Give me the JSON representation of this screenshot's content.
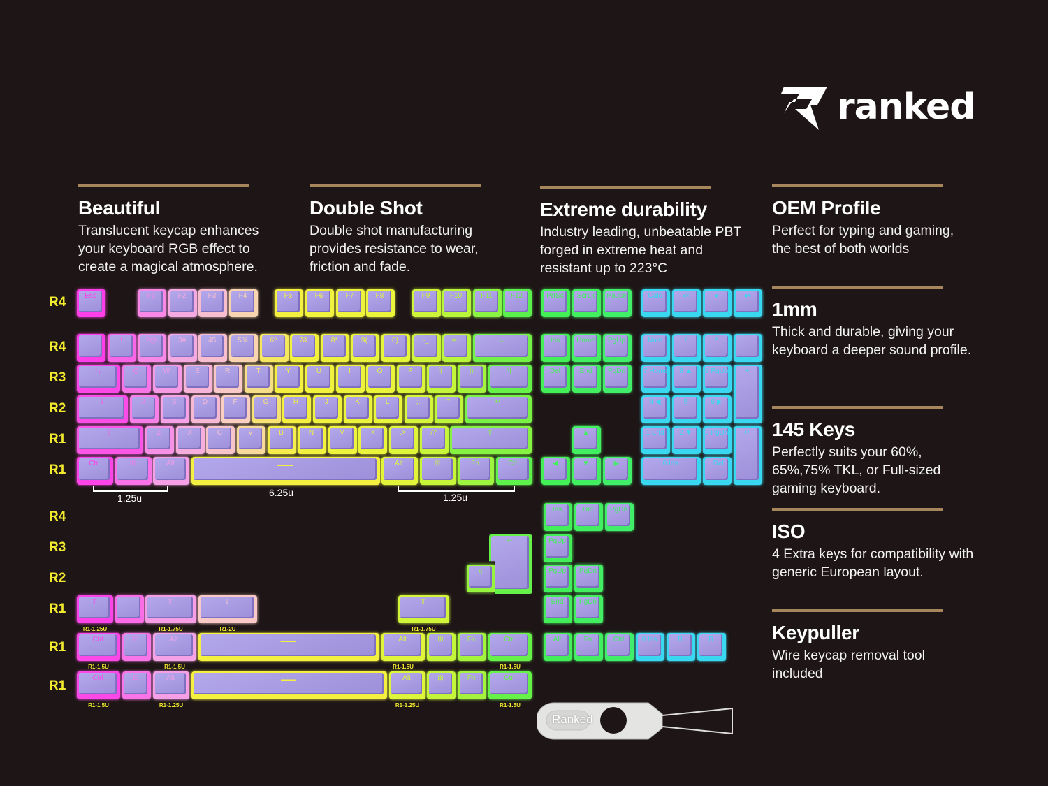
{
  "brand": {
    "name": "ranked"
  },
  "features": [
    {
      "title": "Beautiful",
      "text": "Translucent keycap enhances your keyboard RGB effect to create a magical atmosphere."
    },
    {
      "title": "Double Shot",
      "text": "Double shot manufacturing provides resistance to wear, friction and fade."
    },
    {
      "title": "Extreme durability",
      "text": "Industry leading, unbeatable PBT forged in extreme heat and resistant up to 223°C"
    },
    {
      "title": "OEM Profile",
      "text": "Perfect for typing and gaming, the best of both worlds"
    },
    {
      "title": "1mm",
      "text": "Thick and durable, giving your keyboard a deeper sound profile."
    },
    {
      "title": "145 Keys",
      "text": "Perfectly suits your 60%, 65%,75% TKL, or Full-sized gaming keyboard."
    },
    {
      "title": "ISO",
      "text": "4 Extra keys for compatibility with generic European layout."
    },
    {
      "title": "Keypuller",
      "text": "Wire keycap removal tool included"
    }
  ],
  "row_labels": [
    "R4",
    "R4",
    "R3",
    "R2",
    "R1",
    "R1",
    "R4",
    "R3",
    "R2",
    "R1",
    "R1",
    "R1"
  ],
  "dimensions": [
    "1.25u",
    "6.25u",
    "1.25u"
  ],
  "colors": {
    "magenta": "#ff2ee8",
    "pink": "#f5a3e6",
    "yellow": "#f4f040",
    "green": "#44f050",
    "cyan": "#3ad8f0",
    "keycap": "#a99be0",
    "rule": "#a8865c",
    "row_label": "#f2ea2e"
  },
  "keyboard": {
    "main": [
      [
        {
          "l": "Esc"
        },
        {
          "gap": 1
        },
        {
          "l": "F1"
        },
        {
          "l": "F2"
        },
        {
          "l": "F3"
        },
        {
          "l": "F4"
        },
        {
          "gap": 0.5
        },
        {
          "l": "F5"
        },
        {
          "l": "F6"
        },
        {
          "l": "F7"
        },
        {
          "l": "F8"
        },
        {
          "gap": 0.5
        },
        {
          "l": "F9"
        },
        {
          "l": "F10"
        },
        {
          "l": "F11"
        },
        {
          "l": "F12"
        }
      ],
      [
        {
          "l": "~"
        },
        {
          "l": "!"
        },
        {
          "l": "2@"
        },
        {
          "l": "3#"
        },
        {
          "l": "4$"
        },
        {
          "l": "5%"
        },
        {
          "l": "6^"
        },
        {
          "l": "7&"
        },
        {
          "l": "8*"
        },
        {
          "l": "9("
        },
        {
          "l": "0)"
        },
        {
          "l": "-_"
        },
        {
          "l": "=+"
        },
        {
          "l": "←",
          "u": 2
        }
      ],
      [
        {
          "l": "⇆",
          "u": 1.5
        },
        {
          "l": "Q"
        },
        {
          "l": "W"
        },
        {
          "l": "E"
        },
        {
          "l": "R"
        },
        {
          "l": "T"
        },
        {
          "l": "Y"
        },
        {
          "l": "U"
        },
        {
          "l": "I"
        },
        {
          "l": "O"
        },
        {
          "l": "P"
        },
        {
          "l": "[{"
        },
        {
          "l": "]}"
        },
        {
          "l": "\\|",
          "u": 1.5
        }
      ],
      [
        {
          "l": "⇪",
          "u": 1.75
        },
        {
          "l": "A"
        },
        {
          "l": "S"
        },
        {
          "l": "D"
        },
        {
          "l": "F"
        },
        {
          "l": "G"
        },
        {
          "l": "H"
        },
        {
          "l": "J"
        },
        {
          "l": "K"
        },
        {
          "l": "L"
        },
        {
          "l": ";:"
        },
        {
          "l": "'\""
        },
        {
          "l": "↵",
          "u": 2.25
        }
      ],
      [
        {
          "l": "⇧",
          "u": 2.25
        },
        {
          "l": "Z"
        },
        {
          "l": "X"
        },
        {
          "l": "C"
        },
        {
          "l": "V"
        },
        {
          "l": "B"
        },
        {
          "l": "N"
        },
        {
          "l": "M"
        },
        {
          "l": ",<"
        },
        {
          "l": ".>"
        },
        {
          "l": "/?"
        },
        {
          "l": "⇧",
          "u": 2.75
        }
      ],
      [
        {
          "l": "Ctrl",
          "u": 1.25
        },
        {
          "l": "⊞",
          "u": 1.25
        },
        {
          "l": "Alt",
          "u": 1.25
        },
        {
          "l": "—",
          "u": 6.25
        },
        {
          "l": "Alt",
          "u": 1.25
        },
        {
          "l": "⊞",
          "u": 1.25
        },
        {
          "l": "Fn",
          "u": 1.25
        },
        {
          "l": "Ctrl",
          "u": 1.25
        }
      ]
    ],
    "nav": [
      [
        {
          "l": "PrtSc"
        },
        {
          "l": "ScrLk"
        },
        {
          "l": "Pause"
        }
      ],
      [
        {
          "l": "Ins"
        },
        {
          "l": "Home"
        },
        {
          "l": "PgUp"
        }
      ],
      [
        {
          "l": "Del"
        },
        {
          "l": "End"
        },
        {
          "l": "PgDn"
        }
      ],
      [
        {
          "gap": 1
        },
        {
          "l": "▲"
        }
      ],
      [
        {
          "l": "◀"
        },
        {
          "l": "▼"
        },
        {
          "l": "▶"
        }
      ]
    ],
    "numpad": [
      [
        {
          "l": "Calc"
        },
        {
          "l": "◂×"
        },
        {
          "l": "◂-"
        },
        {
          "l": "◂+"
        }
      ],
      [
        {
          "l": "Num"
        },
        {
          "l": "/"
        },
        {
          "l": "*"
        },
        {
          "l": "−"
        }
      ],
      [
        {
          "l": "7 Home"
        },
        {
          "l": "8 ▲"
        },
        {
          "l": "9 PgUp"
        },
        {
          "l": "+",
          "h": 2
        }
      ],
      [
        {
          "l": "4 ◀"
        },
        {
          "l": "5"
        },
        {
          "l": "6 ▶"
        }
      ],
      [
        {
          "l": "1 End"
        },
        {
          "l": "2 ▼"
        },
        {
          "l": "3 PgDn"
        },
        {
          "l": "↵",
          "h": 2
        }
      ],
      [
        {
          "l": "0 Ins",
          "u": 2
        },
        {
          "l": ". Del"
        }
      ]
    ],
    "extra_nav": [
      [
        {
          "l": "Ins"
        },
        {
          "l": "Del"
        },
        {
          "l": "PgDn"
        }
      ],
      [
        {
          "l": "PgUp"
        }
      ],
      [
        {
          "l": "PgUp"
        },
        {
          "l": "PgDn"
        }
      ],
      [
        {
          "l": "End"
        },
        {
          "l": "PgDn"
        }
      ]
    ],
    "iso": [
      [
        {
          "l": "\\|"
        }
      ]
    ],
    "iso_enter": {
      "l": "↵"
    },
    "shift_extra": [
      [
        {
          "l": "⇧",
          "u": 1.25,
          "s": "R1-1.25U"
        },
        {
          "l": ""
        },
        {
          "l": "⇧",
          "u": 1.75,
          "s": "R1-1.75U"
        },
        {
          "l": "⇧",
          "u": 2,
          "s": "R1-2U"
        }
      ]
    ],
    "shift_extra_right": [
      [
        {
          "l": "⇧",
          "u": 1.75,
          "s": "R1-1.75U"
        }
      ]
    ],
    "bottom_a": [
      [
        {
          "l": "Ctrl",
          "u": 1.5,
          "s": "R1-1.5U"
        },
        {
          "l": "⊞"
        },
        {
          "l": "Alt",
          "u": 1.5,
          "s": "R1-1.5U"
        },
        {
          "l": "—",
          "u": 6
        },
        {
          "l": "Alt",
          "u": 1.5,
          "s": "R1-1.5U"
        },
        {
          "l": "⊞"
        },
        {
          "l": "Fn"
        },
        {
          "l": "Ctrl",
          "u": 1.5,
          "s": "R1-1.5U"
        }
      ]
    ],
    "bottom_b": [
      [
        {
          "l": "Ctrl",
          "u": 1.5,
          "s": "R1-1.5U"
        },
        {
          "l": "⊞"
        },
        {
          "l": "Alt",
          "u": 1.25,
          "s": "R1-1.25U"
        },
        {
          "l": "—",
          "u": 6.5
        },
        {
          "l": "Alt",
          "u": 1.25,
          "s": "R1-1.25U"
        },
        {
          "l": "⊞"
        },
        {
          "l": "Fn"
        },
        {
          "l": "Ctrl",
          "u": 1.5,
          "s": "R1-1.5U"
        }
      ]
    ],
    "extra_mods": [
      [
        {
          "l": "Alt"
        },
        {
          "l": "Fn"
        },
        {
          "l": "Ctrl"
        },
        {
          "l": "0 Ins"
        },
        {
          "l": "B"
        },
        {
          "l": "B"
        }
      ]
    ]
  },
  "keypuller": {
    "label": "Ranked"
  }
}
